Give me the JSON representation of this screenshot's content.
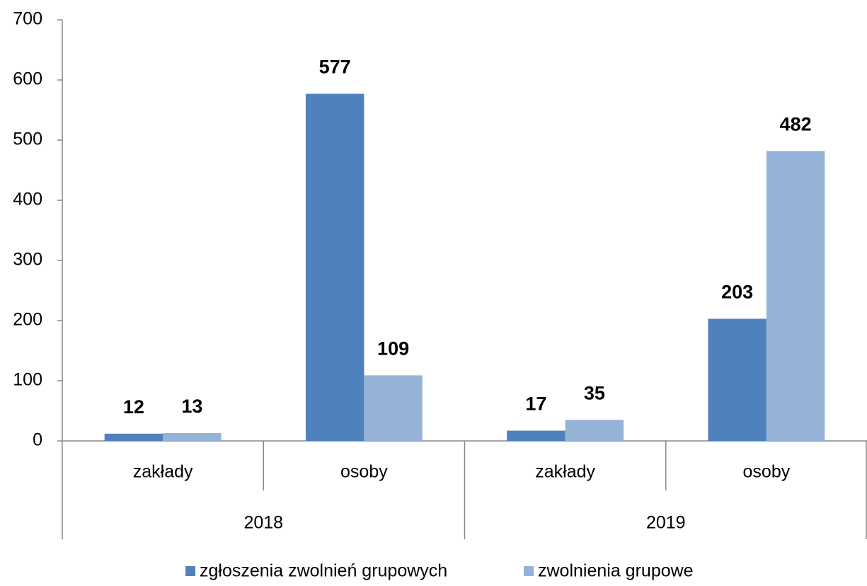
{
  "chart_data": {
    "type": "bar",
    "categories": [
      "zakłady",
      "osoby",
      "zakłady",
      "osoby"
    ],
    "category_groups": [
      "2018",
      "2019"
    ],
    "series": [
      {
        "name": "zgłoszenia zwolnień grupowych",
        "color": "#4f81bd",
        "values": [
          12,
          577,
          17,
          203
        ]
      },
      {
        "name": "zwolnienia grupowe",
        "color": "#95b3d7",
        "values": [
          13,
          109,
          35,
          482
        ]
      }
    ],
    "ylim": [
      0,
      700
    ],
    "yticks": [
      0,
      100,
      200,
      300,
      400,
      500,
      600,
      700
    ],
    "grid": false,
    "legend": "bottom"
  }
}
